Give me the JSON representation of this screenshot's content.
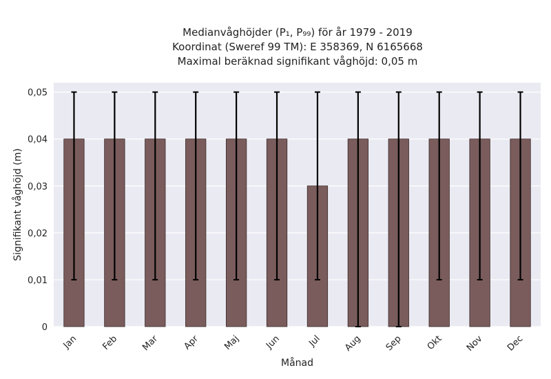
{
  "chart_data": {
    "type": "bar",
    "title_lines": [
      "Medianvåghöjder (P₁, P₉₉) för år 1979 - 2019",
      "Koordinat (Sweref 99 TM): E 358369, N 6165668",
      "Maximal beräknad signifikant våghöjd: 0,05 m"
    ],
    "xlabel": "Månad",
    "ylabel": "Signifikant våghöjd (m)",
    "categories": [
      "Jan",
      "Feb",
      "Mar",
      "Apr",
      "Maj",
      "Jun",
      "Jul",
      "Aug",
      "Sep",
      "Okt",
      "Nov",
      "Dec"
    ],
    "values": [
      0.04,
      0.04,
      0.04,
      0.04,
      0.04,
      0.04,
      0.03,
      0.04,
      0.04,
      0.04,
      0.04,
      0.04
    ],
    "p1": [
      0.01,
      0.01,
      0.01,
      0.01,
      0.01,
      0.01,
      0.01,
      0.0,
      0.0,
      0.01,
      0.01,
      0.01
    ],
    "p99": [
      0.05,
      0.05,
      0.05,
      0.05,
      0.05,
      0.05,
      0.05,
      0.05,
      0.05,
      0.05,
      0.05,
      0.05
    ],
    "ylim": [
      0,
      0.052
    ],
    "yticks": [
      0,
      0.01,
      0.02,
      0.03,
      0.04,
      0.05
    ],
    "ytick_labels": [
      "0",
      "0,01",
      "0,02",
      "0,03",
      "0,04",
      "0,05"
    ],
    "grid": true,
    "colors": {
      "bar": "#7a5c5c",
      "bar_edge": "#3a2a2a",
      "errorbar": "#000000",
      "plot_bg": "#eaeaf2",
      "grid": "#ffffff"
    }
  }
}
